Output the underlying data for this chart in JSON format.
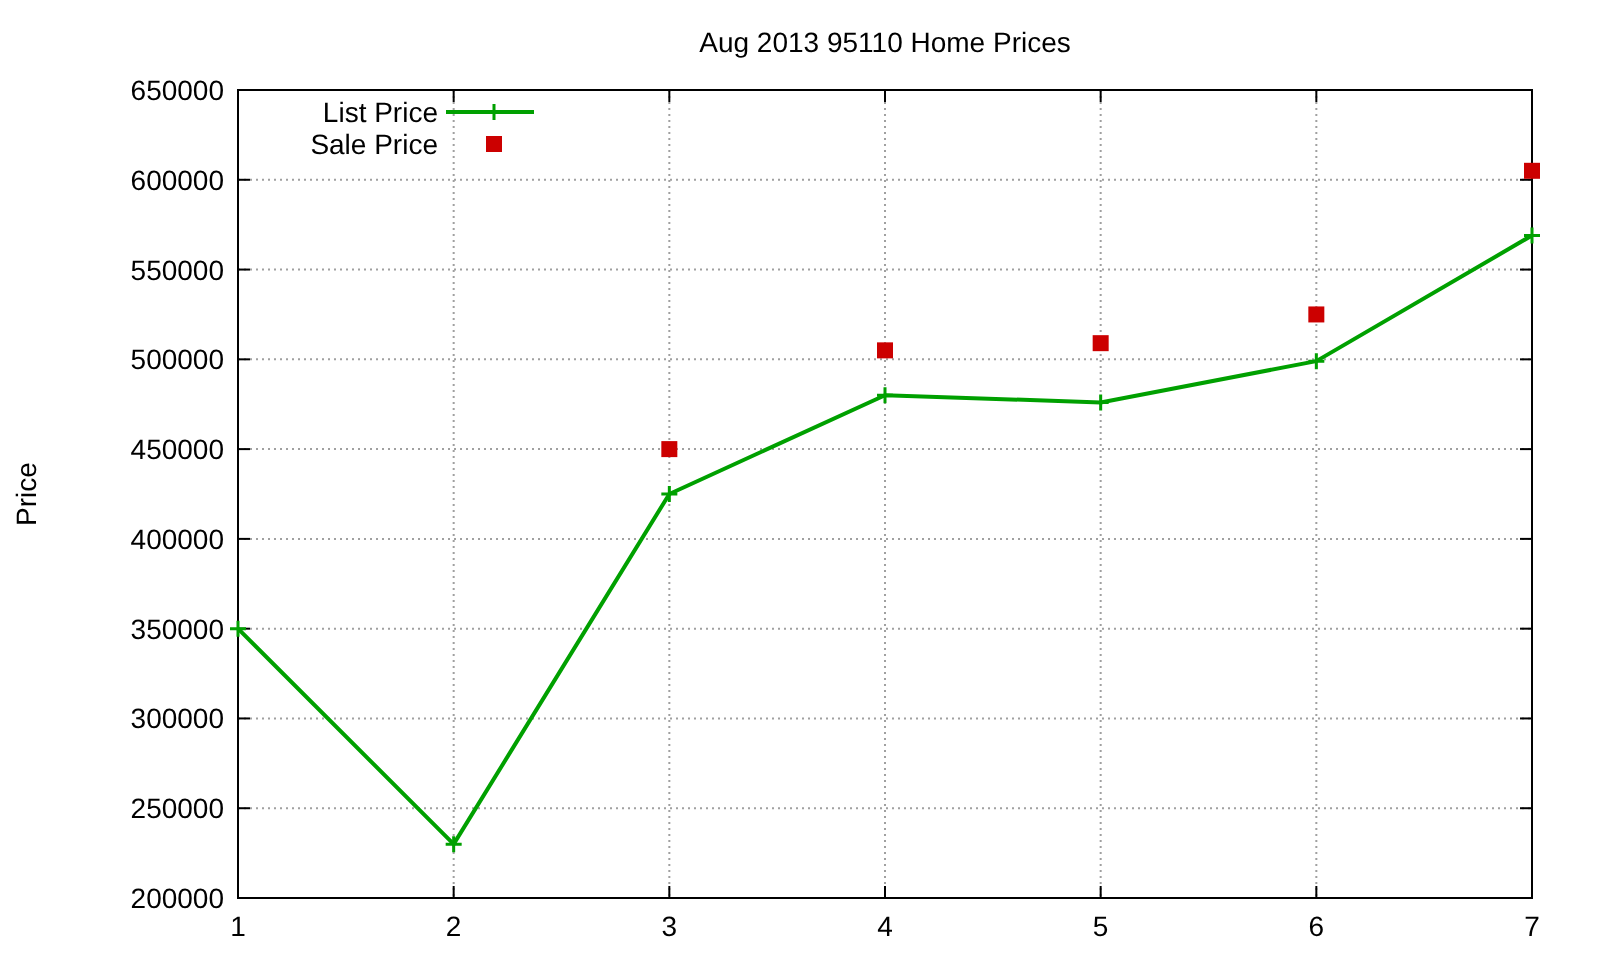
{
  "chart_data": {
    "type": "line",
    "title": "Aug 2013 95110 Home Prices",
    "ylabel": "Price",
    "x": [
      1,
      2,
      3,
      4,
      5,
      6,
      7
    ],
    "xlim": [
      1,
      7
    ],
    "xticks": [
      1,
      2,
      3,
      4,
      5,
      6,
      7
    ],
    "ylim": [
      200000,
      650000
    ],
    "yticks": [
      200000,
      250000,
      300000,
      350000,
      400000,
      450000,
      500000,
      550000,
      600000,
      650000
    ],
    "grid": true,
    "legend": "top left",
    "series": [
      {
        "name": "List Price",
        "marker": "cross",
        "color": "#00a000",
        "values": [
          350000,
          230000,
          425000,
          480000,
          476000,
          499000,
          569000
        ]
      },
      {
        "name": "Sale Price",
        "type": "scatter",
        "marker": "square",
        "color": "#cc0000",
        "values": [
          null,
          null,
          450000,
          505000,
          509000,
          525000,
          605000
        ]
      }
    ]
  }
}
